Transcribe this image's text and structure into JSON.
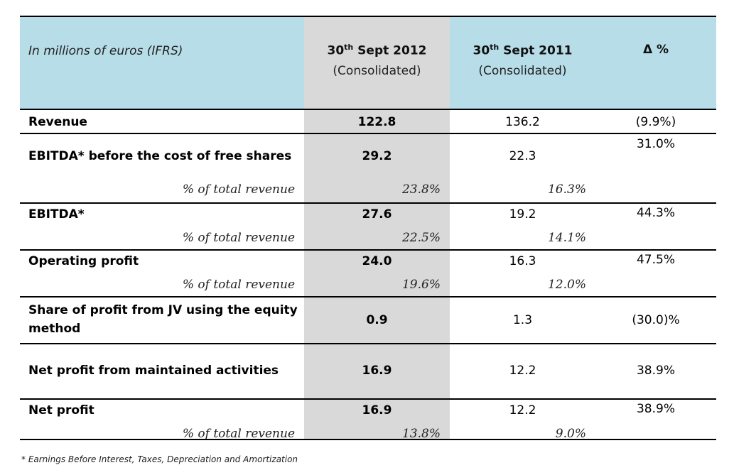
{
  "header": {
    "label": "In millions of euros (IFRS)",
    "col_current": {
      "title_prefix": "30",
      "title_sup": "th",
      "title_rest": " Sept 2012",
      "sub": "(Consolidated)"
    },
    "col_previous": {
      "title_prefix": "30",
      "title_sup": "th",
      "title_rest": " Sept 2011",
      "sub": "(Consolidated)"
    },
    "col_delta": "Δ %"
  },
  "rows": [
    {
      "label": "Revenue",
      "current": "122.8",
      "previous": "136.2",
      "delta": "(9.9%)"
    },
    {
      "label": "EBITDA* before the cost of free shares",
      "current": "29.2",
      "previous": "22.3",
      "delta": "31.0%",
      "pct_label": "% of total revenue",
      "pct_current": "23.8%",
      "pct_previous": "16.3%"
    },
    {
      "label": "EBITDA*",
      "current": "27.6",
      "previous": "19.2",
      "delta": "44.3%",
      "pct_label": "% of total revenue",
      "pct_current": "22.5%",
      "pct_previous": "14.1%"
    },
    {
      "label": "Operating profit",
      "current": "24.0",
      "previous": "16.3",
      "delta": "47.5%",
      "pct_label": "% of total revenue",
      "pct_current": "19.6%",
      "pct_previous": "12.0%"
    },
    {
      "label": "Share of profit from JV using the equity method",
      "current": "0.9",
      "previous": "1.3",
      "delta": "(30.0)%"
    },
    {
      "label": "Net profit from maintained activities",
      "current": "16.9",
      "previous": "12.2",
      "delta": "38.9%"
    },
    {
      "label": "Net profit",
      "current": "16.9",
      "previous": "12.2",
      "delta": "38.9%",
      "pct_label": "% of total revenue",
      "pct_current": "13.8%",
      "pct_previous": "9.0%"
    }
  ],
  "footnote": "* Earnings Before Interest, Taxes, Depreciation and Amortization"
}
